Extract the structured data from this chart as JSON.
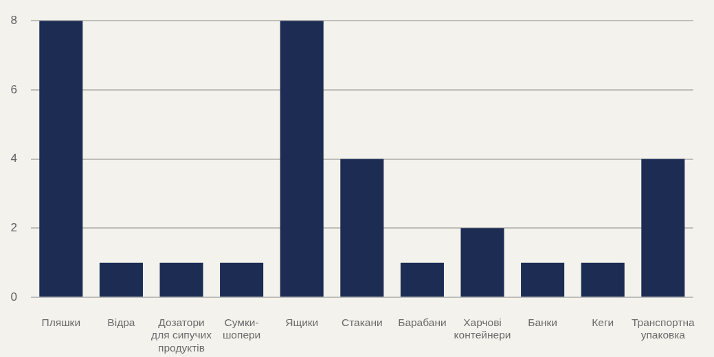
{
  "chart_data": {
    "type": "bar",
    "categories": [
      "Пляшки",
      "Відра",
      "Дозатори для сипучих продуктів",
      "Сумки-шопери",
      "Ящики",
      "Стакани",
      "Барабани",
      "Харчові контейнери",
      "Банки",
      "Кеги",
      "Транспортна упаковка"
    ],
    "values": [
      8,
      1,
      1,
      1,
      8,
      4,
      1,
      2,
      1,
      1,
      4
    ],
    "color": "#1c2c52",
    "ylim": [
      0,
      8
    ],
    "yticks": [
      0,
      2,
      4,
      6,
      8
    ],
    "grid": "y",
    "legend": false
  }
}
